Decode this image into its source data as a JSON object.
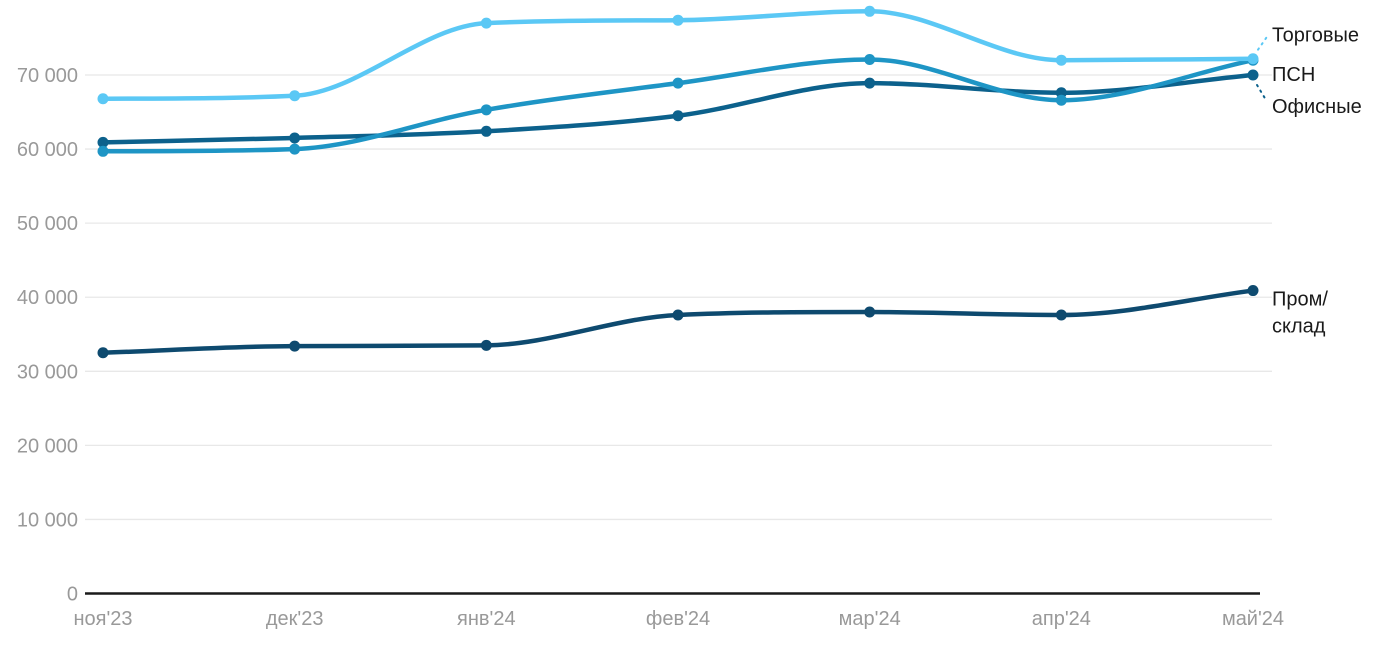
{
  "page": {
    "background": "#FFFFFF"
  },
  "chart_data": {
    "type": "line",
    "title": "",
    "x_labels": [
      "ноя'23",
      "дек'23",
      "янв'24",
      "фев'24",
      "мар'24",
      "апр'24",
      "май'24"
    ],
    "y_ticks": [
      0,
      10000,
      20000,
      30000,
      40000,
      50000,
      60000,
      70000
    ],
    "y_tick_format": "space-thousands",
    "ylim": [
      0,
      80000
    ],
    "grid": true,
    "legend_position": "right-annotations",
    "colors": {
      "grid": "#E8E8E8",
      "zero_axis": "#1A1A1A",
      "tick_labels": "#999999",
      "annotation_labels": "#1A1A1A"
    },
    "series": [
      {
        "name": "Торговые",
        "slug": "torgovye",
        "color": "#5BC8F5",
        "values": [
          66800,
          67200,
          77000,
          77400,
          78600,
          72000,
          72200
        ],
        "label_lines": [
          "Торговые"
        ],
        "label_offset_y": -24,
        "connector": "up"
      },
      {
        "name": "ПСН",
        "slug": "psn",
        "color": "#1E95C5",
        "values": [
          59700,
          60000,
          65300,
          68900,
          72100,
          66600,
          72000
        ],
        "label_lines": [
          "ПСН"
        ],
        "label_offset_y": 14,
        "connector": null
      },
      {
        "name": "Офисные",
        "slug": "ofisnye",
        "color": "#0C618C",
        "values": [
          60900,
          61500,
          62400,
          64500,
          68900,
          67600,
          70000
        ],
        "label_lines": [
          "Офисные"
        ],
        "label_offset_y": 31,
        "connector": "down"
      },
      {
        "name": "Пром/склад",
        "slug": "prom-sklad",
        "color": "#0E4A6F",
        "values": [
          32500,
          33400,
          33500,
          37600,
          38000,
          37600,
          40900
        ],
        "label_lines": [
          "Пром/",
          "склад"
        ],
        "label_offset_y": 8,
        "connector": null
      }
    ]
  }
}
